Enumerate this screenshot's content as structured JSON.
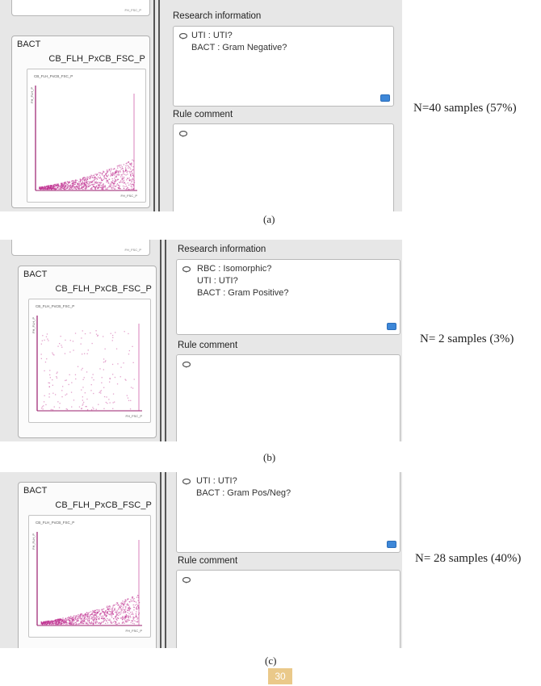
{
  "panels": [
    {
      "bact_title": "BACT",
      "bact_subtitle": "CB_FLH_PxCB_FSC_P",
      "plot_title": "CB_FLH_PxCB_FSC_P",
      "x_axis_label": "FH_FSC_P",
      "y_axis_label": "FH_FLH_P",
      "research_label": "Research information",
      "research_lines": [
        "UTI : UTI?",
        "BACT : Gram Negative?"
      ],
      "rule_label": "Rule comment",
      "n_text": "N=40 samples (57%)",
      "caption": "(a)"
    },
    {
      "bact_title": "BACT",
      "bact_subtitle": "CB_FLH_PxCB_FSC_P",
      "plot_title": "CB_FLH_PxCB_FSC_P",
      "x_axis_label": "FH_FSC_P",
      "y_axis_label": "FH_FLH_P",
      "research_label": "Research information",
      "research_lines": [
        "RBC : Isomorphic?",
        "UTI : UTI?",
        "BACT : Gram Positive?"
      ],
      "rule_label": "Rule comment",
      "n_text": "N= 2 samples (3%)",
      "caption": "(b)"
    },
    {
      "bact_title": "BACT",
      "bact_subtitle": "CB_FLH_PxCB_FSC_P",
      "plot_title": "CB_FLH_PxCB_FSC_P",
      "x_axis_label": "FH_FSC_P",
      "y_axis_label": "FH_FLH_P",
      "research_lines": [
        "UTI : UTI?",
        "BACT : Gram Pos/Neg?"
      ],
      "rule_label": "Rule comment",
      "n_text": "N= 28 samples (40%)",
      "caption": "(c)"
    }
  ],
  "prev_label": "FH_FSC_P",
  "page_number": "30",
  "colors": {
    "scatter": "#c0308f",
    "axis": "#9a1c6d",
    "button": "#3d87d8",
    "window_bg": "#e7e7e7"
  },
  "icons": {
    "comment": "speech-bubble-icon",
    "action": "blue-square-button-icon"
  }
}
